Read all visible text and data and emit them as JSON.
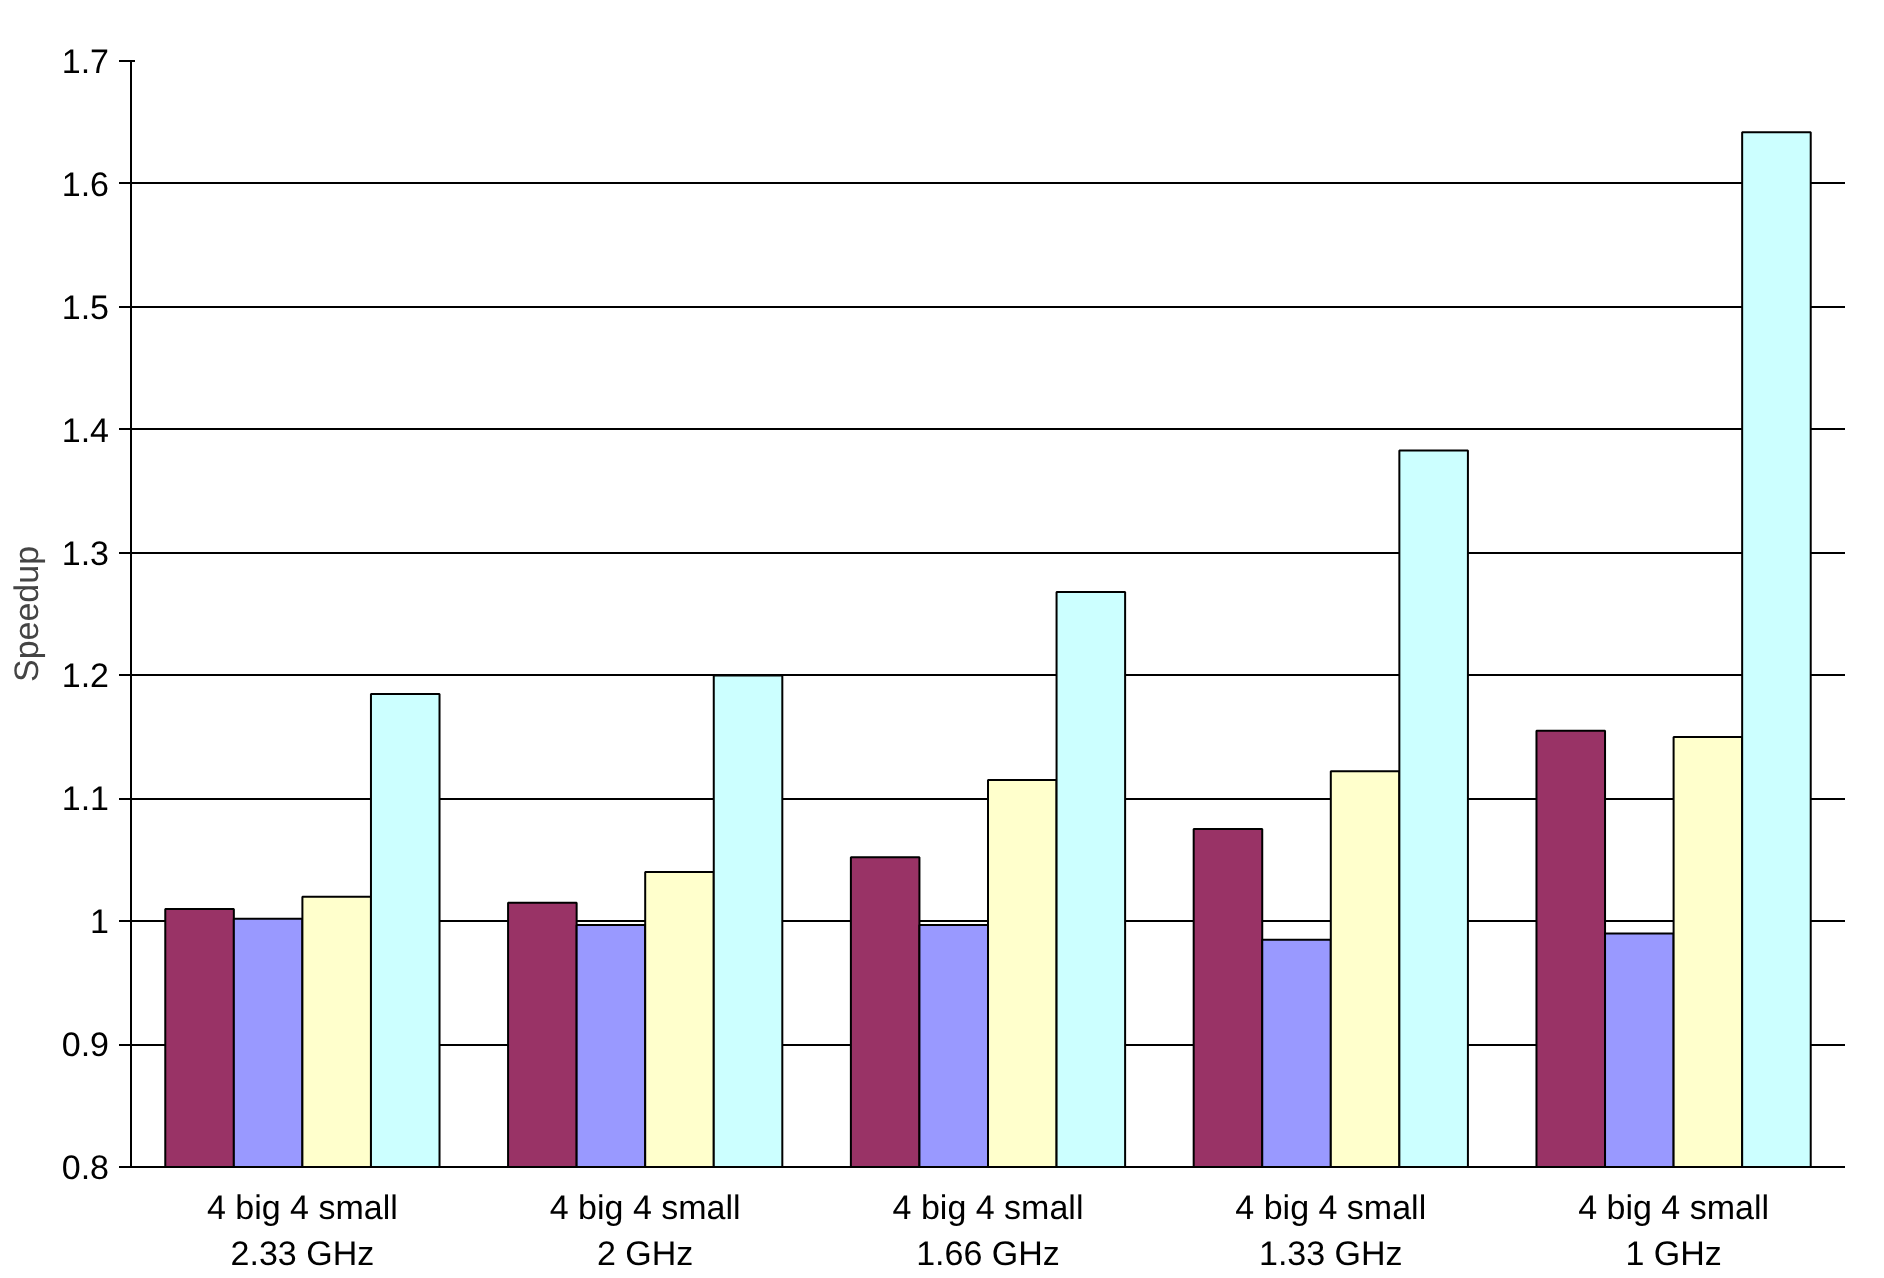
{
  "chart_data": {
    "type": "bar",
    "ylabel": "Speedup",
    "categories": [
      "4 big 4 small\n2.33 GHz",
      "4 big 4 small\n2 GHz",
      "4 big 4 small\n1.66 GHz",
      "4 big 4 small\n1.33 GHz",
      "4 big 4 small\n1 GHz"
    ],
    "series": [
      {
        "color": "#993366",
        "values": [
          1.01,
          1.015,
          1.052,
          1.075,
          1.155
        ]
      },
      {
        "color": "#9999ff",
        "values": [
          1.002,
          0.997,
          0.997,
          0.985,
          0.99
        ]
      },
      {
        "color": "#ffffcc",
        "values": [
          1.02,
          1.04,
          1.115,
          1.122,
          1.15
        ]
      },
      {
        "color": "#ccffff",
        "values": [
          1.185,
          1.2,
          1.268,
          1.383,
          1.642
        ]
      }
    ],
    "ylim": [
      0.8,
      1.7
    ],
    "yticks": [
      0.8,
      0.9,
      1,
      1.1,
      1.2,
      1.3,
      1.4,
      1.5,
      1.6,
      1.7
    ],
    "grid": "y"
  }
}
